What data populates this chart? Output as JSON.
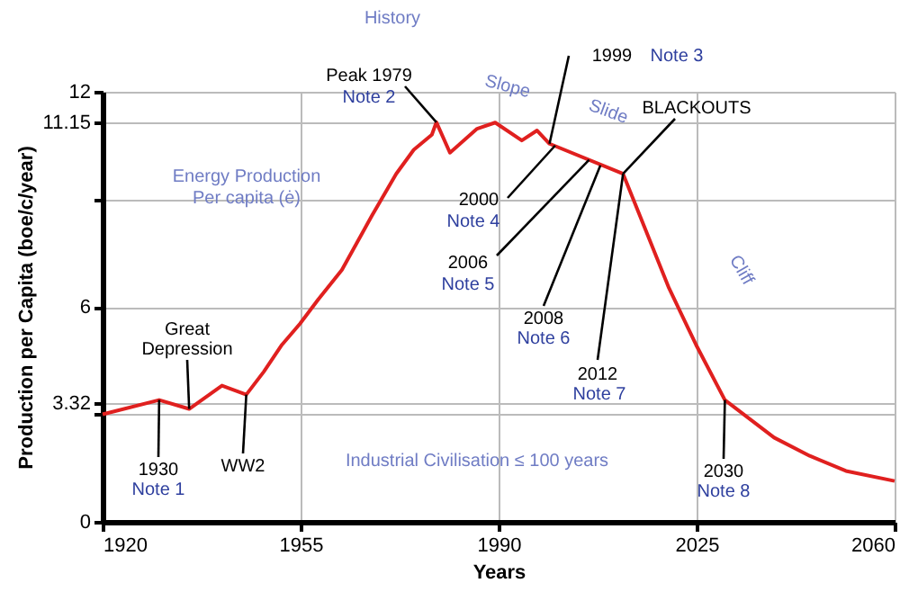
{
  "chart_data": {
    "type": "line",
    "xlabel": "Years",
    "ylabel": "Production per Capita (boe/c/year)",
    "xlim": [
      1920,
      2060
    ],
    "xticks": [
      1920,
      1955,
      1990,
      2025,
      2060
    ],
    "ylim": [
      0,
      12
    ],
    "yticks": [
      0,
      {
        "value": 3,
        "label": null
      },
      3.32,
      6,
      {
        "value": 9,
        "label": null
      },
      11.15,
      12
    ],
    "grid": true,
    "series": [
      {
        "color": "#e0201f",
        "x": [
          1920,
          1930,
          1935.3,
          1941.1,
          1945.4,
          1948.5,
          1951.7,
          1954.9,
          1958.1,
          1962.3,
          1967.6,
          1971.9,
          1975,
          1978.2,
          1979,
          1981.4,
          1986.2,
          1989.4,
          1994.1,
          1996.8,
          1999,
          2012,
          2020.1,
          2024.9,
          2030,
          2038.7,
          2045,
          2051.4,
          2060
        ],
        "values": [
          3.0,
          3.4,
          3.15,
          3.8,
          3.55,
          4.19,
          4.94,
          5.53,
          6.2,
          7.03,
          8.54,
          9.71,
          10.38,
          10.8,
          11.15,
          10.3,
          10.97,
          11.14,
          10.64,
          10.92,
          10.55,
          9.71,
          6.53,
          4.94,
          3.4,
          2.35,
          1.84,
          1.42,
          1.14
        ]
      }
    ],
    "annotations": [
      "History",
      {
        "text": "Peak 1979",
        "x": 1979,
        "y": 11.15
      },
      "Note 2",
      {
        "text": "1999",
        "x": 1999,
        "y": 10.55
      },
      "Note 3",
      "Slope",
      "Slide",
      {
        "text": "BLACKOUTS",
        "x": 2012,
        "y": 9.71
      },
      "Cliff",
      "Energy Production",
      "Per capita (ė)",
      {
        "text": "2000",
        "x": 2000,
        "y": 10.5
      },
      "Note 4",
      {
        "text": "2006",
        "x": 2006,
        "y": 10.1
      },
      "Note 5",
      {
        "text": "2008",
        "x": 2008,
        "y": 9.95
      },
      "Note 6",
      {
        "text": "2012",
        "x": 2012,
        "y": 9.71
      },
      "Note 7",
      "Great",
      {
        "text": "Depression",
        "x": 1935.3,
        "y": 3.15
      },
      {
        "text": "1930",
        "x": 1930,
        "y": 3.4
      },
      "Note 1",
      {
        "text": "WW2",
        "x": 1945.4,
        "y": 3.55
      },
      "Industrial Civilisation ≤ 100 years",
      {
        "text": "2030",
        "x": 2030,
        "y": 3.4
      },
      "Note 8"
    ]
  }
}
